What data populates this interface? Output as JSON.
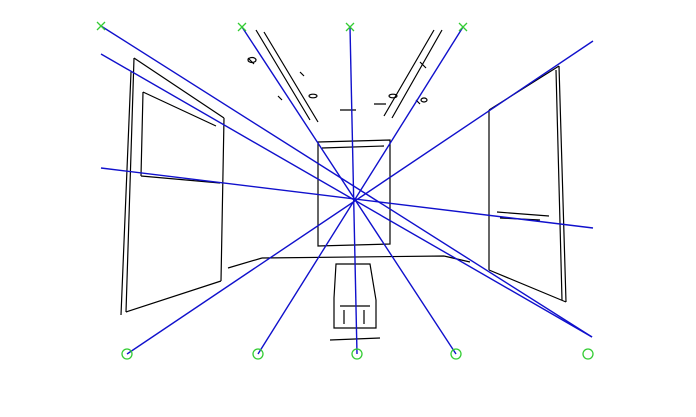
{
  "figure": {
    "background": "#ffffff",
    "edge_color": "#000000",
    "line_color": "#1010cc",
    "marker_color": "#33cc33",
    "cross_marker_count": 4,
    "circle_marker_count": 5,
    "rays_through_center": 7
  }
}
